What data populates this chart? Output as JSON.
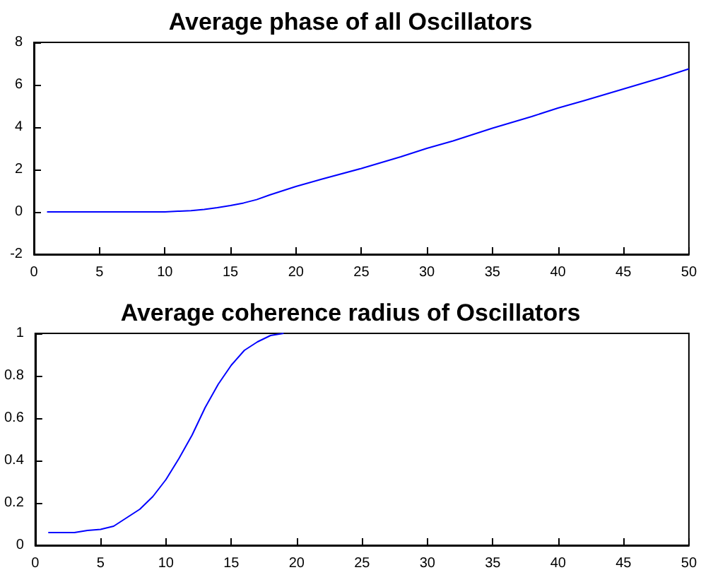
{
  "chart_data": [
    {
      "type": "line",
      "title": "Average phase of all Oscillators",
      "x": [
        1,
        3,
        5,
        7,
        9,
        10,
        11,
        12,
        13,
        14,
        15,
        16,
        17,
        18,
        19,
        20,
        22,
        25,
        28,
        30,
        32,
        35,
        38,
        40,
        42,
        45,
        48,
        50
      ],
      "series": [
        {
          "color": "#0000ff",
          "values": [
            0,
            0,
            0,
            0,
            0,
            0,
            0.03,
            0.06,
            0.12,
            0.2,
            0.3,
            0.42,
            0.58,
            0.8,
            1.0,
            1.2,
            1.55,
            2.05,
            2.6,
            3.0,
            3.35,
            3.95,
            4.5,
            4.9,
            5.25,
            5.8,
            6.35,
            6.75
          ]
        }
      ],
      "xlim": [
        0,
        50
      ],
      "xticks": [
        0,
        5,
        10,
        15,
        20,
        25,
        30,
        35,
        40,
        45,
        50
      ],
      "ylim": [
        -2,
        8
      ],
      "yticks": [
        -2,
        0,
        2,
        4,
        6,
        8
      ]
    },
    {
      "type": "line",
      "title": "Average coherence radius of Oscillators",
      "x": [
        1,
        2,
        3,
        4,
        5,
        6,
        7,
        8,
        9,
        10,
        11,
        12,
        13,
        14,
        15,
        16,
        17,
        18,
        19
      ],
      "series": [
        {
          "color": "#0000ff",
          "values": [
            0.06,
            0.06,
            0.06,
            0.07,
            0.075,
            0.09,
            0.13,
            0.17,
            0.23,
            0.31,
            0.41,
            0.52,
            0.65,
            0.76,
            0.85,
            0.92,
            0.96,
            0.99,
            1.0
          ]
        }
      ],
      "xlim": [
        0,
        50
      ],
      "xticks": [
        0,
        5,
        10,
        15,
        20,
        25,
        30,
        35,
        40,
        45,
        50
      ],
      "ylim": [
        0,
        1
      ],
      "yticks": [
        0,
        0.2,
        0.4,
        0.6,
        0.8,
        1
      ]
    }
  ]
}
